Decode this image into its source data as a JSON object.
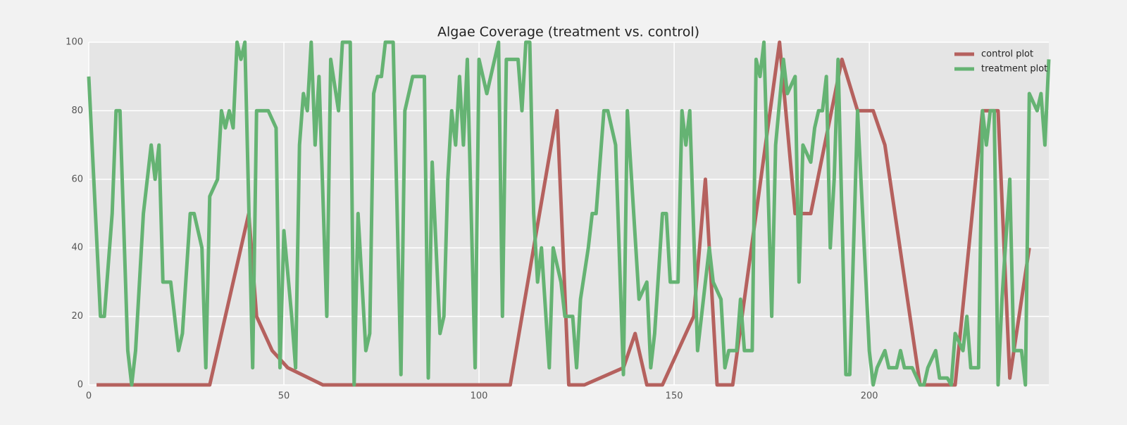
{
  "chart_data": {
    "type": "line",
    "title": "Algae Coverage (treatment vs. control)",
    "xlim": [
      0,
      246
    ],
    "ylim": [
      0,
      100
    ],
    "xticks": [
      0,
      50,
      100,
      150,
      200
    ],
    "yticks": [
      0,
      20,
      40,
      60,
      80,
      100
    ],
    "grid": true,
    "legend": "upper right",
    "series": [
      {
        "name": "control plot",
        "color": "#b5615e",
        "x": [
          2,
          31,
          41,
          43,
          47,
          51,
          60,
          108,
          120,
          123,
          127,
          137,
          140,
          143,
          147,
          155,
          158,
          161,
          165,
          177,
          181,
          185,
          193,
          197,
          201,
          204,
          213,
          222,
          229,
          233,
          236,
          241
        ],
        "values": [
          0,
          0,
          50,
          20,
          10,
          5,
          0,
          0,
          80,
          0,
          0,
          5,
          15,
          0,
          0,
          20,
          60,
          0,
          0,
          100,
          50,
          50,
          95,
          80,
          80,
          70,
          0,
          0,
          80,
          80,
          2,
          40
        ]
      },
      {
        "name": "treatment plot",
        "color": "#65b373",
        "x": [
          0,
          3,
          4,
          6,
          7,
          8,
          10,
          11,
          12,
          14,
          16,
          17,
          18,
          19,
          21,
          23,
          24,
          26,
          27,
          29,
          30,
          31,
          33,
          34,
          35,
          36,
          37,
          38,
          39,
          40,
          42,
          43,
          46,
          48,
          49,
          50,
          52,
          53,
          54,
          55,
          56,
          57,
          58,
          59,
          61,
          62,
          64,
          65,
          67,
          68,
          69,
          70,
          71,
          72,
          73,
          74,
          75,
          76,
          78,
          80,
          81,
          83,
          86,
          87,
          88,
          90,
          91,
          92,
          93,
          94,
          95,
          96,
          97,
          99,
          100,
          102,
          105,
          106,
          107,
          110,
          111,
          112,
          113,
          114,
          115,
          116,
          118,
          119,
          121,
          122,
          124,
          125,
          126,
          128,
          129,
          130,
          132,
          133,
          135,
          137,
          138,
          141,
          143,
          144,
          145,
          147,
          148,
          149,
          151,
          152,
          153,
          154,
          156,
          159,
          160,
          162,
          163,
          164,
          166,
          167,
          168,
          170,
          171,
          172,
          173,
          175,
          176,
          178,
          179,
          181,
          182,
          183,
          185,
          186,
          187,
          188,
          189,
          190,
          191,
          192,
          194,
          195,
          197,
          200,
          201,
          202,
          204,
          205,
          207,
          208,
          209,
          211,
          213,
          214,
          215,
          217,
          218,
          220,
          221,
          222,
          224,
          225,
          226,
          228,
          229,
          230,
          231,
          232,
          233,
          234,
          236,
          237,
          238,
          239,
          240,
          241,
          243,
          244,
          245,
          246
        ],
        "values": [
          90,
          20,
          20,
          50,
          80,
          80,
          10,
          0,
          10,
          50,
          70,
          60,
          70,
          30,
          30,
          10,
          15,
          50,
          50,
          40,
          5,
          55,
          60,
          80,
          75,
          80,
          75,
          100,
          95,
          100,
          5,
          80,
          80,
          75,
          5,
          45,
          20,
          5,
          70,
          85,
          80,
          100,
          70,
          90,
          20,
          95,
          80,
          100,
          100,
          0,
          50,
          30,
          10,
          15,
          85,
          90,
          90,
          100,
          100,
          3,
          80,
          90,
          90,
          2,
          65,
          15,
          20,
          60,
          80,
          70,
          90,
          70,
          95,
          5,
          95,
          85,
          100,
          20,
          95,
          95,
          80,
          100,
          100,
          50,
          30,
          40,
          5,
          40,
          30,
          20,
          20,
          5,
          25,
          40,
          50,
          50,
          80,
          80,
          70,
          3,
          80,
          25,
          30,
          5,
          15,
          50,
          50,
          30,
          30,
          80,
          70,
          80,
          10,
          40,
          30,
          25,
          5,
          10,
          10,
          25,
          10,
          10,
          95,
          90,
          100,
          20,
          70,
          95,
          85,
          90,
          30,
          70,
          65,
          75,
          80,
          80,
          90,
          40,
          60,
          95,
          3,
          3,
          80,
          10,
          0,
          5,
          10,
          5,
          5,
          10,
          5,
          5,
          0,
          0,
          5,
          10,
          2,
          2,
          0,
          15,
          10,
          20,
          5,
          5,
          80,
          70,
          80,
          80,
          0,
          25,
          60,
          10,
          10,
          10,
          0,
          85,
          80,
          85,
          70,
          95
        ]
      }
    ]
  }
}
